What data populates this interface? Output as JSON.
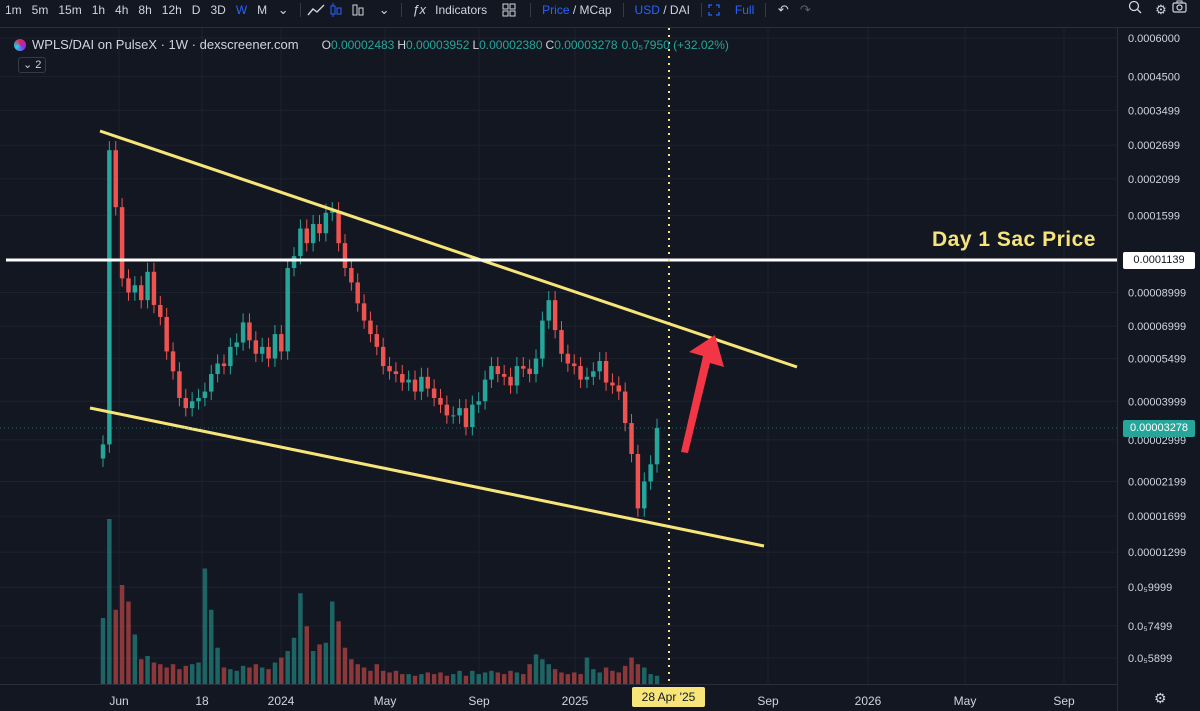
{
  "toolbar": {
    "timeframes": [
      "1m",
      "5m",
      "15m",
      "1h",
      "4h",
      "8h",
      "12h",
      "D",
      "3D",
      "W",
      "M"
    ],
    "active_timeframe": "W",
    "indicators_label": "Indicators",
    "price_label": "Price",
    "mcap_label": "MCap",
    "usd_label": "USD",
    "dai_label": "DAI",
    "full_label": "Full",
    "icons": [
      "chevron-down-icon",
      "line-chart-icon",
      "candles-icon",
      "bars-icon",
      "function-icon",
      "layout-grid-icon",
      "fullscreen-icon",
      "undo-icon",
      "redo-icon",
      "search-icon",
      "settings-icon",
      "camera-icon"
    ]
  },
  "legend": {
    "title": "WPLS/DAI on PulseX · 1W · dexscreener.com",
    "o_label": "O",
    "o_value": "0.00002483",
    "h_label": "H",
    "h_value": "0.00003952",
    "l_label": "L",
    "l_value": "0.00002380",
    "c_label": "C",
    "c_value": "0.00003278",
    "change": "0.0₅7950 (+32.02%)",
    "sub_count": "2"
  },
  "annotation": {
    "text": "Day 1 Sac Price",
    "line_price_tag": "0.0001139",
    "last_price_tag": "0.00003278",
    "time_tag": "28 Apr '25"
  },
  "colors": {
    "bg": "#131722",
    "up": "#26a69a",
    "down": "#ef5350",
    "trendline": "#f7e57a",
    "hline": "#ffffff",
    "arrow": "#f23645",
    "grid": "#1e222d"
  },
  "chart_data": {
    "type": "candlestick",
    "title": "WPLS/DAI on PulseX · 1W · dexscreener.com",
    "y_scale": "log",
    "y_ticks": [
      "0.0006000",
      "0.0004500",
      "0.0003499",
      "0.0002699",
      "0.0002099",
      "0.0001599",
      "0.0001139",
      "0.00008999",
      "0.00006999",
      "0.00005499",
      "0.00003999",
      "0.00003278",
      "0.00002999",
      "0.00002199",
      "0.00001699",
      "0.00001299",
      "0.0₅9999",
      "0.0₅7499",
      "0.0₅5899"
    ],
    "x_ticks": [
      "Jun",
      "18",
      "2024",
      "May",
      "Sep",
      "2025",
      "28 Apr '25",
      "Sep",
      "2026",
      "May",
      "Sep"
    ],
    "candles_close": [
      2.9e-05,
      0.00026,
      0.00017,
      0.0001,
      9e-05,
      9.5e-05,
      8.5e-05,
      0.000105,
      8.2e-05,
      7.5e-05,
      5.8e-05,
      5e-05,
      4.1e-05,
      3.8e-05,
      4e-05,
      4.1e-05,
      4.3e-05,
      4.9e-05,
      5.3e-05,
      5.2e-05,
      6e-05,
      6.2e-05,
      7.2e-05,
      6.3e-05,
      5.7e-05,
      6e-05,
      5.5e-05,
      6.6e-05,
      5.8e-05,
      0.000108,
      0.000118,
      0.000145,
      0.00013,
      0.00015,
      0.00014,
      0.000163,
      0.000165,
      0.00013,
      0.000108,
      9.7e-05,
      8.3e-05,
      7.3e-05,
      6.6e-05,
      6e-05,
      5.2e-05,
      5e-05,
      4.9e-05,
      4.6e-05,
      4.7e-05,
      4.3e-05,
      4.8e-05,
      4.4e-05,
      4.1e-05,
      3.9e-05,
      3.6e-05,
      3.6e-05,
      3.8e-05,
      3.3e-05,
      3.9e-05,
      4e-05,
      4.7e-05,
      5.2e-05,
      4.9e-05,
      4.8e-05,
      4.5e-05,
      5.2e-05,
      5.1e-05,
      4.9e-05,
      5.5e-05,
      7.3e-05,
      8.5e-05,
      6.8e-05,
      5.7e-05,
      5.3e-05,
      5.2e-05,
      4.7e-05,
      4.8e-05,
      5e-05,
      5.4e-05,
      4.6e-05,
      4.5e-05,
      4.3e-05,
      3.4e-05,
      2.7e-05,
      1.8e-05,
      2.2e-05,
      2.5e-05,
      3.28e-05
    ],
    "volume_relative": [
      0.4,
      1.0,
      0.45,
      0.6,
      0.5,
      0.3,
      0.15,
      0.17,
      0.13,
      0.12,
      0.1,
      0.12,
      0.09,
      0.11,
      0.12,
      0.13,
      0.7,
      0.45,
      0.22,
      0.1,
      0.09,
      0.08,
      0.11,
      0.1,
      0.12,
      0.1,
      0.09,
      0.13,
      0.16,
      0.2,
      0.28,
      0.55,
      0.35,
      0.2,
      0.24,
      0.25,
      0.5,
      0.38,
      0.22,
      0.15,
      0.12,
      0.1,
      0.08,
      0.12,
      0.08,
      0.07,
      0.08,
      0.06,
      0.06,
      0.05,
      0.06,
      0.07,
      0.06,
      0.07,
      0.05,
      0.06,
      0.08,
      0.05,
      0.08,
      0.06,
      0.07,
      0.08,
      0.07,
      0.06,
      0.08,
      0.07,
      0.06,
      0.12,
      0.18,
      0.15,
      0.12,
      0.09,
      0.07,
      0.06,
      0.07,
      0.06,
      0.16,
      0.09,
      0.07,
      0.1,
      0.08,
      0.07,
      0.11,
      0.16,
      0.12,
      0.1,
      0.06,
      0.05
    ]
  }
}
